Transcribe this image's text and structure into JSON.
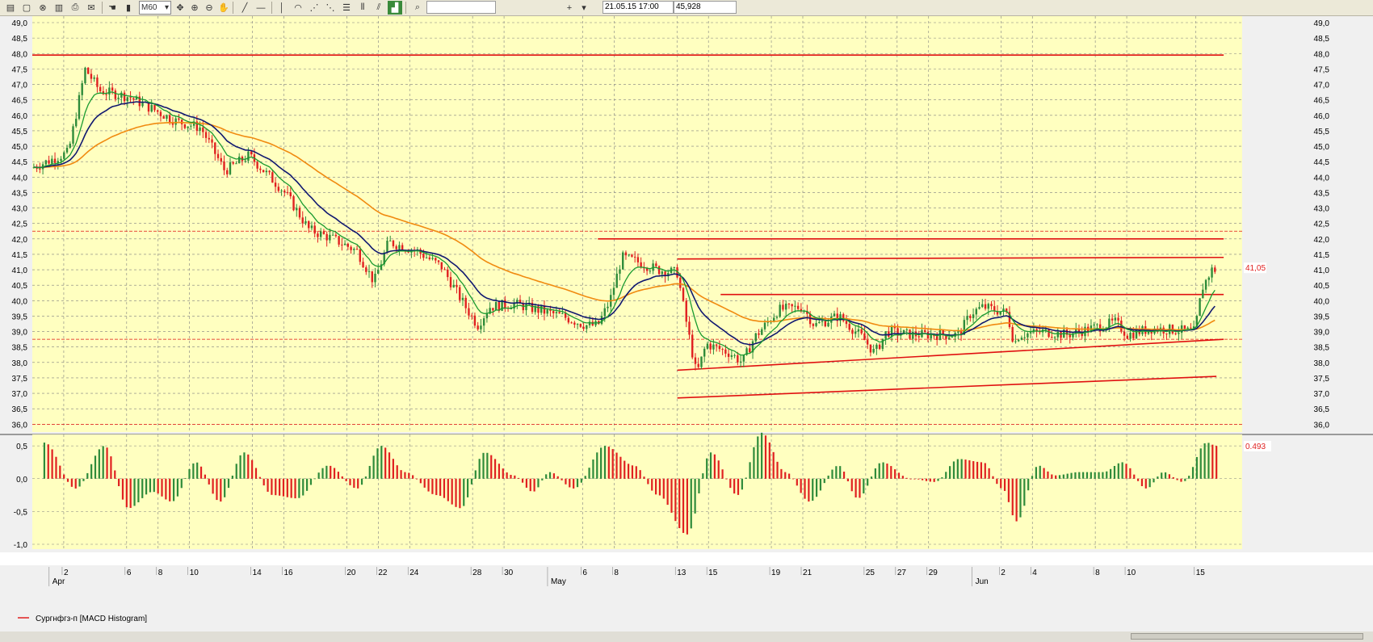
{
  "toolbar": {
    "timeframe": "M60",
    "date_value": "21.05.15 17:00",
    "price_value": "45,928",
    "search_value": ""
  },
  "legend": {
    "label": "Сургнфгз-п [MACD Histogram]",
    "color": "#e02020"
  },
  "colors": {
    "background": "#ffffc0",
    "grid": "#808080",
    "up_candle": "#2e8b3a",
    "down_candle": "#e02020",
    "ema_fast": "#1a9a30",
    "ema_mid": "#101870",
    "ema_slow": "#f08a10",
    "level_line": "#e01010"
  },
  "chart_data": [
    {
      "type": "candlestick",
      "timeframe": "M60",
      "ylim": [
        35.8,
        49.0
      ],
      "y_ticks": [
        "49,0",
        "48,5",
        "48,0",
        "47,5",
        "47,0",
        "46,5",
        "46,0",
        "45,5",
        "45,0",
        "44,5",
        "44,0",
        "43,5",
        "43,0",
        "42,5",
        "42,0",
        "41,5",
        "41,0",
        "40,5",
        "40,0",
        "39,5",
        "39,0",
        "38,5",
        "38,0",
        "37,5",
        "37,0",
        "36,5",
        "36,0"
      ],
      "x_day_labels": [
        "2",
        "6",
        "8",
        "10",
        "14",
        "16",
        "20",
        "22",
        "24",
        "28",
        "30",
        "6",
        "8",
        "13",
        "15",
        "19",
        "21",
        "25",
        "27",
        "29",
        "2",
        "4",
        "8",
        "10",
        "15"
      ],
      "x_month_labels": [
        "Apr",
        "May",
        "Jun"
      ],
      "last_price_label": "41,05",
      "price_path": [
        {
          "d": 0.0,
          "p": 44.3
        },
        {
          "d": 1.5,
          "p": 44.8
        },
        {
          "d": 2.2,
          "p": 47.5
        },
        {
          "d": 2.8,
          "p": 46.8
        },
        {
          "d": 4.0,
          "p": 46.6
        },
        {
          "d": 5.0,
          "p": 46.2
        },
        {
          "d": 6.0,
          "p": 45.8
        },
        {
          "d": 7.0,
          "p": 45.6
        },
        {
          "d": 8.0,
          "p": 44.2
        },
        {
          "d": 9.0,
          "p": 44.7
        },
        {
          "d": 10.5,
          "p": 43.5
        },
        {
          "d": 11.5,
          "p": 42.3
        },
        {
          "d": 12.5,
          "p": 42.0
        },
        {
          "d": 13.5,
          "p": 41.6
        },
        {
          "d": 14.2,
          "p": 40.6
        },
        {
          "d": 14.8,
          "p": 41.9
        },
        {
          "d": 16.0,
          "p": 41.6
        },
        {
          "d": 17.0,
          "p": 41.1
        },
        {
          "d": 18.0,
          "p": 39.8
        },
        {
          "d": 18.5,
          "p": 39.2
        },
        {
          "d": 19.0,
          "p": 39.8
        },
        {
          "d": 20.0,
          "p": 39.9
        },
        {
          "d": 21.0,
          "p": 39.7
        },
        {
          "d": 22.0,
          "p": 39.5
        },
        {
          "d": 23.0,
          "p": 39.2
        },
        {
          "d": 23.5,
          "p": 39.2
        },
        {
          "d": 24.0,
          "p": 40.0
        },
        {
          "d": 24.5,
          "p": 41.4
        },
        {
          "d": 25.0,
          "p": 41.3
        },
        {
          "d": 26.0,
          "p": 41.0
        },
        {
          "d": 26.8,
          "p": 40.9
        },
        {
          "d": 27.2,
          "p": 39.2
        },
        {
          "d": 27.6,
          "p": 37.6
        },
        {
          "d": 28.0,
          "p": 38.6
        },
        {
          "d": 29.0,
          "p": 38.3
        },
        {
          "d": 29.5,
          "p": 38.0
        },
        {
          "d": 30.0,
          "p": 38.8
        },
        {
          "d": 31.0,
          "p": 39.7
        },
        {
          "d": 32.0,
          "p": 39.8
        },
        {
          "d": 32.5,
          "p": 39.2
        },
        {
          "d": 33.5,
          "p": 39.5
        },
        {
          "d": 34.5,
          "p": 38.8
        },
        {
          "d": 35.0,
          "p": 38.3
        },
        {
          "d": 35.5,
          "p": 39.0
        },
        {
          "d": 36.5,
          "p": 38.9
        },
        {
          "d": 37.5,
          "p": 38.9
        },
        {
          "d": 38.5,
          "p": 38.9
        },
        {
          "d": 39.0,
          "p": 39.6
        },
        {
          "d": 39.5,
          "p": 39.8
        },
        {
          "d": 40.5,
          "p": 39.6
        },
        {
          "d": 40.8,
          "p": 38.6
        },
        {
          "d": 41.0,
          "p": 38.9
        },
        {
          "d": 42.0,
          "p": 39.0
        },
        {
          "d": 43.0,
          "p": 38.9
        },
        {
          "d": 44.0,
          "p": 39.1
        },
        {
          "d": 45.0,
          "p": 39.3
        },
        {
          "d": 45.5,
          "p": 38.9
        },
        {
          "d": 46.5,
          "p": 39.1
        },
        {
          "d": 48.3,
          "p": 39.0
        },
        {
          "d": 48.6,
          "p": 40.4
        },
        {
          "d": 49.0,
          "p": 41.0
        }
      ],
      "sr_levels": [
        {
          "from_d": 0,
          "from_p": 47.95,
          "to_d": 49.5,
          "to_p": 47.95
        },
        {
          "from_d": 23.5,
          "from_p": 42.0,
          "to_d": 49.5,
          "to_p": 42.0
        },
        {
          "from_d": 26.8,
          "from_p": 41.35,
          "to_d": 49.5,
          "to_p": 41.4
        },
        {
          "from_d": 28.6,
          "from_p": 40.2,
          "to_d": 49.5,
          "to_p": 40.2
        },
        {
          "from_d": 26.8,
          "from_p": 37.75,
          "to_d": 49.5,
          "to_p": 38.75
        },
        {
          "from_d": 26.8,
          "from_p": 36.85,
          "to_d": 49.2,
          "to_p": 37.55
        }
      ],
      "dashed_levels": [
        42.25,
        38.75,
        36.0
      ]
    },
    {
      "type": "bar",
      "name": "Сургнфгз-п [MACD Histogram]",
      "ylim": [
        -1.0,
        0.6
      ],
      "y_ticks": [
        "0,5",
        "0,0",
        "-0,5",
        "-1,0"
      ],
      "last_value_label": "0.493",
      "waves": [
        {
          "d": 0.5,
          "v": 0.55
        },
        {
          "d": 1.8,
          "v": -0.15
        },
        {
          "d": 3.0,
          "v": 0.5
        },
        {
          "d": 4.0,
          "v": -0.45
        },
        {
          "d": 5.0,
          "v": -0.2
        },
        {
          "d": 5.8,
          "v": -0.35
        },
        {
          "d": 6.8,
          "v": 0.25
        },
        {
          "d": 7.8,
          "v": -0.35
        },
        {
          "d": 8.8,
          "v": 0.4
        },
        {
          "d": 10.0,
          "v": -0.25
        },
        {
          "d": 11.0,
          "v": -0.3
        },
        {
          "d": 12.3,
          "v": 0.2
        },
        {
          "d": 13.5,
          "v": -0.15
        },
        {
          "d": 14.5,
          "v": 0.5
        },
        {
          "d": 15.5,
          "v": 0.1
        },
        {
          "d": 16.8,
          "v": -0.25
        },
        {
          "d": 17.8,
          "v": -0.45
        },
        {
          "d": 18.8,
          "v": 0.4
        },
        {
          "d": 20.0,
          "v": 0.05
        },
        {
          "d": 20.8,
          "v": -0.2
        },
        {
          "d": 21.5,
          "v": 0.1
        },
        {
          "d": 22.5,
          "v": -0.15
        },
        {
          "d": 23.8,
          "v": 0.5
        },
        {
          "d": 25.0,
          "v": 0.2
        },
        {
          "d": 26.0,
          "v": -0.25
        },
        {
          "d": 27.2,
          "v": -0.85
        },
        {
          "d": 28.2,
          "v": 0.4
        },
        {
          "d": 29.3,
          "v": -0.25
        },
        {
          "d": 30.3,
          "v": 0.7
        },
        {
          "d": 31.3,
          "v": 0.1
        },
        {
          "d": 32.3,
          "v": -0.35
        },
        {
          "d": 33.5,
          "v": 0.2
        },
        {
          "d": 34.3,
          "v": -0.3
        },
        {
          "d": 35.3,
          "v": 0.25
        },
        {
          "d": 36.5,
          "v": 0.0
        },
        {
          "d": 37.5,
          "v": -0.05
        },
        {
          "d": 38.5,
          "v": 0.3
        },
        {
          "d": 39.5,
          "v": 0.25
        },
        {
          "d": 40.3,
          "v": -0.15
        },
        {
          "d": 40.9,
          "v": -0.65
        },
        {
          "d": 41.8,
          "v": 0.2
        },
        {
          "d": 42.5,
          "v": 0.05
        },
        {
          "d": 43.5,
          "v": 0.1
        },
        {
          "d": 44.5,
          "v": 0.1
        },
        {
          "d": 45.3,
          "v": 0.25
        },
        {
          "d": 46.3,
          "v": -0.15
        },
        {
          "d": 47.0,
          "v": 0.1
        },
        {
          "d": 47.8,
          "v": -0.05
        },
        {
          "d": 48.8,
          "v": 0.55
        },
        {
          "d": 49.2,
          "v": 0.5
        }
      ]
    }
  ]
}
